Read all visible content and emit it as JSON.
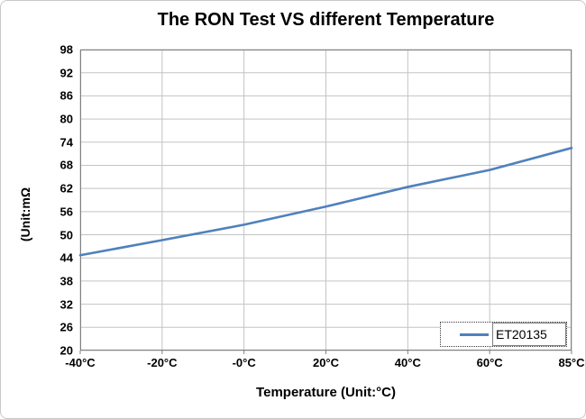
{
  "chart_data": {
    "type": "line",
    "title": "The RON Test VS different Temperature",
    "xlabel": "Temperature (Unit:°C)",
    "ylabel": "(Unit:mΩ",
    "categories": [
      "-40°C",
      "-20°C",
      "-0°C",
      "20°C",
      "40°C",
      "60°C",
      "85°C"
    ],
    "series": [
      {
        "name": "ET20135",
        "color": "#4f81bd",
        "values": [
          44.7,
          48.6,
          52.6,
          57.3,
          62.4,
          66.8,
          72.5
        ]
      }
    ],
    "ylim": [
      20,
      98
    ],
    "ytick_step": 6,
    "yticks": [
      98,
      92,
      86,
      80,
      74,
      68,
      62,
      56,
      50,
      44,
      38,
      32,
      26,
      20
    ],
    "grid": true,
    "legend_position": "bottom-right"
  },
  "colors": {
    "line": "#4f81bd",
    "gridline": "#c3c3c3",
    "axis": "#808080",
    "text": "#000000",
    "chart_frame": "#c8c8c8"
  }
}
